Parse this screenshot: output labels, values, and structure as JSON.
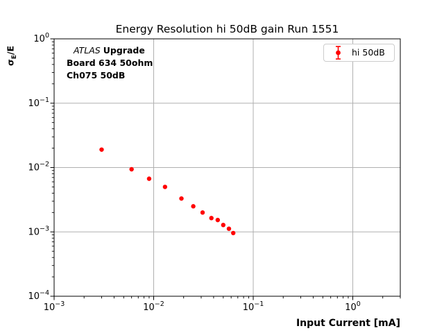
{
  "figure": {
    "title": "Energy Resolution hi 50dB gain Run 1551",
    "xlabel": "Input Current [mA]",
    "ylabel": {
      "sigma": "σ",
      "subscript": "E",
      "rest": "/E"
    },
    "annotation": {
      "experiment": "ATLAS",
      "experiment_suffix": "Upgrade",
      "line2": "Board 634 50ohm",
      "line3": "Ch075 50dB"
    },
    "legend": {
      "label": "hi 50dB",
      "icon": "errorbar-marker-icon"
    },
    "colors": {
      "marker_red": "#ff0000",
      "grid_gray": "#b0b0b0",
      "frame_black": "#000000",
      "legend_border_gray": "#cccccc",
      "background": "#ffffff"
    }
  },
  "chart_data": {
    "type": "scatter",
    "title": "Energy Resolution hi 50dB gain Run 1551",
    "xlabel": "Input Current [mA]",
    "ylabel": "sigma_E/E",
    "x_scale": "log",
    "y_scale": "log",
    "xlim": [
      0.001,
      3
    ],
    "ylim": [
      0.0001,
      1
    ],
    "grid": "major-only",
    "legend_position": "upper-right",
    "x_ticks": [
      {
        "value": 0.001,
        "label": "10^-3"
      },
      {
        "value": 0.01,
        "label": "10^-2"
      },
      {
        "value": 0.1,
        "label": "10^-1"
      },
      {
        "value": 1,
        "label": "10^0"
      }
    ],
    "y_ticks": [
      {
        "value": 1,
        "label": "10^0"
      },
      {
        "value": 0.1,
        "label": "10^-1"
      },
      {
        "value": 0.01,
        "label": "10^-2"
      },
      {
        "value": 0.001,
        "label": "10^-3"
      },
      {
        "value": 0.0001,
        "label": "10^-4"
      }
    ],
    "series": [
      {
        "name": "hi 50dB",
        "color": "#ff0000",
        "marker": "filled-circle-with-errorbar",
        "x": [
          0.003,
          0.006,
          0.009,
          0.013,
          0.019,
          0.025,
          0.031,
          0.038,
          0.044,
          0.05,
          0.057,
          0.063
        ],
        "y": [
          0.019,
          0.0094,
          0.0067,
          0.005,
          0.0033,
          0.0025,
          0.002,
          0.00164,
          0.00153,
          0.00128,
          0.00112,
          0.00096
        ]
      }
    ]
  }
}
